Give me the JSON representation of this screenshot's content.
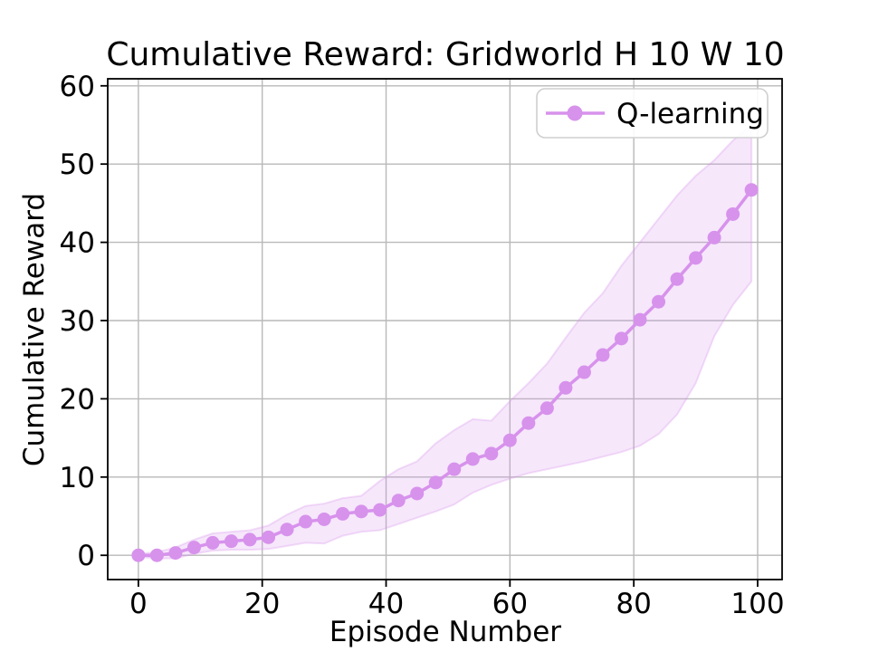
{
  "figure": {
    "background": "#ffffff"
  },
  "chart_data": {
    "type": "line",
    "title": "Cumulative Reward: Gridworld H 10 W 10",
    "xlabel": "Episode Number",
    "ylabel": "Cumulative Reward",
    "xlim": [
      -4.95,
      103.95
    ],
    "ylim": [
      -3.1,
      60.9
    ],
    "xticks": [
      0,
      20,
      40,
      60,
      80,
      100
    ],
    "yticks": [
      0,
      10,
      20,
      30,
      40,
      50,
      60
    ],
    "grid": true,
    "legend": {
      "position": "upper-right",
      "entries": [
        "Q-learning"
      ]
    },
    "colors": {
      "line": "#D792EC",
      "band": "#D792EC",
      "grid": "#B9B9B9",
      "axis": "#000000",
      "legend_border": "#CFCFCF"
    },
    "series": [
      {
        "name": "Q-learning",
        "marker": "circle",
        "x": [
          0,
          3,
          6,
          9,
          12,
          15,
          18,
          21,
          24,
          27,
          30,
          33,
          36,
          39,
          42,
          45,
          48,
          51,
          54,
          57,
          60,
          63,
          66,
          69,
          72,
          75,
          78,
          81,
          84,
          87,
          90,
          93,
          96,
          99
        ],
        "y": [
          0.0,
          0.0,
          0.3,
          1.0,
          1.6,
          1.8,
          2.0,
          2.3,
          3.3,
          4.3,
          4.6,
          5.3,
          5.6,
          5.8,
          7.0,
          7.9,
          9.3,
          11.0,
          12.3,
          13.0,
          14.7,
          16.9,
          18.8,
          21.4,
          23.4,
          25.6,
          27.7,
          30.1,
          32.4,
          35.3,
          38.0,
          40.6,
          43.6,
          46.7
        ],
        "band_lower": [
          -0.2,
          -0.4,
          -0.4,
          0.2,
          0.6,
          0.7,
          0.7,
          0.8,
          1.2,
          1.6,
          1.5,
          2.5,
          3.0,
          3.2,
          4.0,
          4.8,
          5.6,
          6.5,
          8.0,
          9.0,
          9.8,
          10.5,
          11.0,
          11.5,
          12.0,
          12.6,
          13.2,
          14.0,
          15.5,
          18.0,
          22.0,
          28.0,
          32.0,
          35.0
        ],
        "band_upper": [
          0.2,
          0.4,
          1.0,
          2.0,
          2.8,
          3.0,
          3.2,
          3.8,
          5.2,
          6.3,
          6.6,
          7.3,
          7.6,
          9.5,
          11.0,
          12.0,
          14.3,
          16.0,
          17.4,
          17.2,
          19.7,
          22.0,
          24.5,
          27.8,
          31.0,
          33.5,
          37.0,
          40.0,
          43.0,
          46.0,
          48.5,
          50.5,
          53.0,
          55.0
        ]
      }
    ]
  }
}
